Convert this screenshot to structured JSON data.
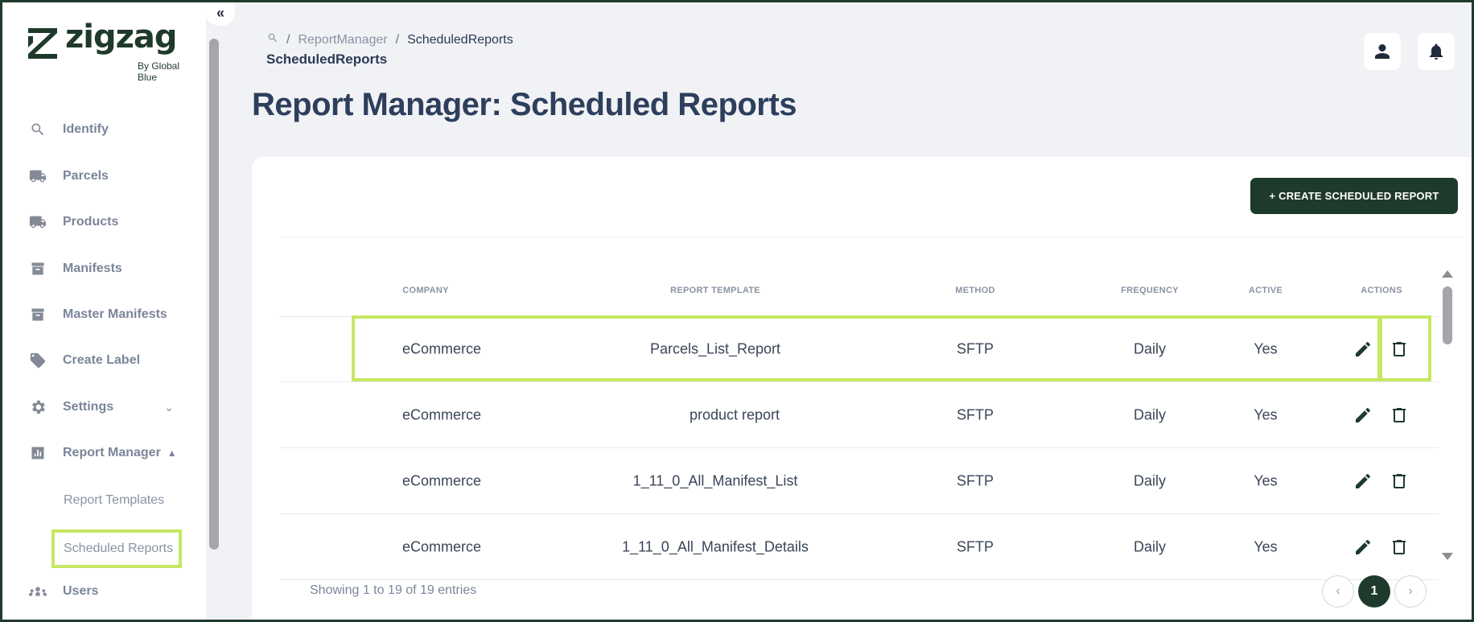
{
  "brand": {
    "name": "zigzag",
    "tagline": "By Global Blue",
    "color": "#1f3a2b",
    "accent_highlight": "#c6e763"
  },
  "sidebar": {
    "collapse_glyph": "«",
    "items": [
      {
        "label": "Identify",
        "icon": "search-icon"
      },
      {
        "label": "Parcels",
        "icon": "truck-icon"
      },
      {
        "label": "Products",
        "icon": "truck-icon"
      },
      {
        "label": "Manifests",
        "icon": "archive-box-icon"
      },
      {
        "label": "Master Manifests",
        "icon": "archive-box-icon"
      },
      {
        "label": "Create Label",
        "icon": "tag-icon"
      },
      {
        "label": "Settings",
        "icon": "gear-icon",
        "expand": "chevron-down"
      },
      {
        "label": "Report Manager",
        "icon": "bar-chart-icon",
        "expand": "chevron-up"
      },
      {
        "label": "Users",
        "icon": "users-icon"
      }
    ],
    "sub_items": [
      {
        "label": "Report Templates"
      },
      {
        "label": "Scheduled Reports",
        "active": true
      }
    ]
  },
  "header": {
    "breadcrumb": [
      "ReportManager",
      "ScheduledReports"
    ],
    "breadcrumb_sep": "/",
    "subtitle": "ScheduledReports",
    "title": "Report Manager: Scheduled Reports"
  },
  "toolbar": {
    "create_label": "+ CREATE SCHEDULED REPORT"
  },
  "table": {
    "columns": [
      "COMPANY",
      "REPORT TEMPLATE",
      "METHOD",
      "FREQUENCY",
      "ACTIVE",
      "ACTIONS"
    ],
    "rows": [
      {
        "company": "eCommerce",
        "template": "Parcels_List_Report",
        "method": "SFTP",
        "frequency": "Daily",
        "active": "Yes"
      },
      {
        "company": "eCommerce",
        "template": "product report",
        "method": "SFTP",
        "frequency": "Daily",
        "active": "Yes"
      },
      {
        "company": "eCommerce",
        "template": "1_11_0_All_Manifest_List",
        "method": "SFTP",
        "frequency": "Daily",
        "active": "Yes"
      },
      {
        "company": "eCommerce",
        "template": "1_11_0_All_Manifest_Details",
        "method": "SFTP",
        "frequency": "Daily",
        "active": "Yes"
      }
    ]
  },
  "footer": {
    "showing": "Showing 1 to 19 of 19 entries",
    "prev": "‹",
    "current_page": "1",
    "next": "›"
  }
}
